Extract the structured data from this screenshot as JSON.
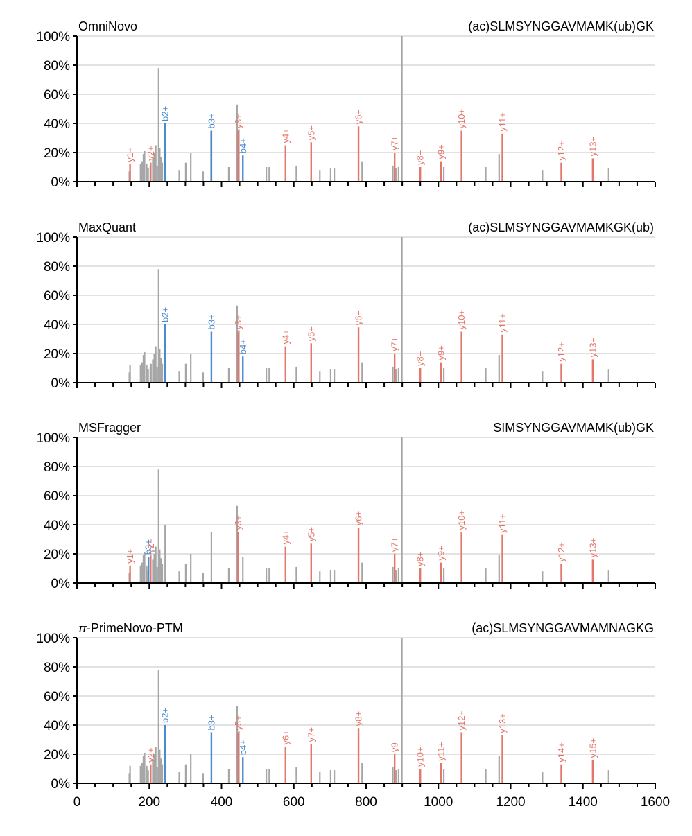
{
  "colors": {
    "unmatched": "#a6a6a6",
    "b_ion": "#4a8bd0",
    "y_ion": "#e4766a",
    "grid": "#d0d0d0",
    "axis": "#000000"
  },
  "chart_data": [
    {
      "type": "bar",
      "method": "OmniNovo",
      "sequence": "(ac)SLMSYNGGAVMAMK(ub)GK",
      "xlim": [
        0,
        1600
      ],
      "ylim": [
        0,
        100
      ],
      "yticks": [
        "0%",
        "20%",
        "40%",
        "60%",
        "80%",
        "100%"
      ],
      "grid": true,
      "peaks": [
        {
          "mz": 145,
          "i": 7
        },
        {
          "mz": 176,
          "i": 12
        },
        {
          "mz": 180,
          "i": 14
        },
        {
          "mz": 184,
          "i": 19
        },
        {
          "mz": 187,
          "i": 21
        },
        {
          "mz": 193,
          "i": 12
        },
        {
          "mz": 197,
          "i": 9
        },
        {
          "mz": 203,
          "i": 11
        },
        {
          "mz": 210,
          "i": 16
        },
        {
          "mz": 214,
          "i": 20
        },
        {
          "mz": 218,
          "i": 25
        },
        {
          "mz": 222,
          "i": 11
        },
        {
          "mz": 226,
          "i": 78
        },
        {
          "mz": 229,
          "i": 23
        },
        {
          "mz": 232,
          "i": 17
        },
        {
          "mz": 236,
          "i": 13
        },
        {
          "mz": 244,
          "i": 40
        },
        {
          "mz": 283,
          "i": 8
        },
        {
          "mz": 301,
          "i": 13
        },
        {
          "mz": 315,
          "i": 20
        },
        {
          "mz": 349,
          "i": 7
        },
        {
          "mz": 371,
          "i": 35
        },
        {
          "mz": 420,
          "i": 10
        },
        {
          "mz": 443,
          "i": 53
        },
        {
          "mz": 448,
          "i": 36
        },
        {
          "mz": 524,
          "i": 10
        },
        {
          "mz": 532,
          "i": 10
        },
        {
          "mz": 607,
          "i": 11
        },
        {
          "mz": 672,
          "i": 8
        },
        {
          "mz": 702,
          "i": 9
        },
        {
          "mz": 712,
          "i": 9
        },
        {
          "mz": 789,
          "i": 14
        },
        {
          "mz": 874,
          "i": 11
        },
        {
          "mz": 883,
          "i": 9
        },
        {
          "mz": 890,
          "i": 10
        },
        {
          "mz": 899,
          "i": 100
        },
        {
          "mz": 1015,
          "i": 10
        },
        {
          "mz": 1131,
          "i": 10
        },
        {
          "mz": 1168,
          "i": 19
        },
        {
          "mz": 1288,
          "i": 8
        },
        {
          "mz": 1471,
          "i": 9
        }
      ],
      "ions": [
        {
          "label": "y1+",
          "type": "y",
          "mz": 147,
          "i": 12
        },
        {
          "label": "y2+",
          "type": "y",
          "mz": 204,
          "i": 13
        },
        {
          "label": "b2+",
          "type": "b",
          "mz": 244,
          "i": 40
        },
        {
          "label": "b3+",
          "type": "b",
          "mz": 372,
          "i": 35
        },
        {
          "label": "y3+",
          "type": "y",
          "mz": 446,
          "i": 35
        },
        {
          "label": "b4+",
          "type": "b",
          "mz": 459,
          "i": 18
        },
        {
          "label": "y4+",
          "type": "y",
          "mz": 577,
          "i": 25
        },
        {
          "label": "y5+",
          "type": "y",
          "mz": 648,
          "i": 27
        },
        {
          "label": "y6+",
          "type": "y",
          "mz": 779,
          "i": 38
        },
        {
          "label": "y7+",
          "type": "y",
          "mz": 879,
          "i": 20
        },
        {
          "label": "y8+",
          "type": "y",
          "mz": 950,
          "i": 10
        },
        {
          "label": "y9+",
          "type": "y",
          "mz": 1007,
          "i": 14
        },
        {
          "label": "y10+",
          "type": "y",
          "mz": 1064,
          "i": 35
        },
        {
          "label": "y11+",
          "type": "y",
          "mz": 1177,
          "i": 33
        },
        {
          "label": "y12+",
          "type": "y",
          "mz": 1340,
          "i": 13
        },
        {
          "label": "y13+",
          "type": "y",
          "mz": 1427,
          "i": 16
        }
      ]
    },
    {
      "type": "bar",
      "method": "MaxQuant",
      "sequence": "(ac)SLMSYNGGAVMAMKGK(ub)",
      "xlim": [
        0,
        1600
      ],
      "ylim": [
        0,
        100
      ],
      "yticks": [
        "0%",
        "20%",
        "40%",
        "60%",
        "80%",
        "100%"
      ],
      "grid": true,
      "peaks": [
        {
          "mz": 145,
          "i": 7
        },
        {
          "mz": 147,
          "i": 12
        },
        {
          "mz": 176,
          "i": 12
        },
        {
          "mz": 180,
          "i": 14
        },
        {
          "mz": 184,
          "i": 19
        },
        {
          "mz": 187,
          "i": 21
        },
        {
          "mz": 193,
          "i": 12
        },
        {
          "mz": 197,
          "i": 9
        },
        {
          "mz": 203,
          "i": 11
        },
        {
          "mz": 205,
          "i": 13
        },
        {
          "mz": 210,
          "i": 16
        },
        {
          "mz": 214,
          "i": 20
        },
        {
          "mz": 218,
          "i": 25
        },
        {
          "mz": 222,
          "i": 11
        },
        {
          "mz": 226,
          "i": 78
        },
        {
          "mz": 229,
          "i": 23
        },
        {
          "mz": 232,
          "i": 17
        },
        {
          "mz": 236,
          "i": 13
        },
        {
          "mz": 283,
          "i": 8
        },
        {
          "mz": 301,
          "i": 13
        },
        {
          "mz": 315,
          "i": 20
        },
        {
          "mz": 349,
          "i": 7
        },
        {
          "mz": 420,
          "i": 10
        },
        {
          "mz": 443,
          "i": 53
        },
        {
          "mz": 448,
          "i": 36
        },
        {
          "mz": 524,
          "i": 10
        },
        {
          "mz": 532,
          "i": 10
        },
        {
          "mz": 607,
          "i": 11
        },
        {
          "mz": 672,
          "i": 8
        },
        {
          "mz": 702,
          "i": 9
        },
        {
          "mz": 712,
          "i": 9
        },
        {
          "mz": 789,
          "i": 14
        },
        {
          "mz": 874,
          "i": 11
        },
        {
          "mz": 883,
          "i": 9
        },
        {
          "mz": 890,
          "i": 10
        },
        {
          "mz": 899,
          "i": 100
        },
        {
          "mz": 1015,
          "i": 10
        },
        {
          "mz": 1131,
          "i": 10
        },
        {
          "mz": 1168,
          "i": 19
        },
        {
          "mz": 1288,
          "i": 8
        },
        {
          "mz": 1471,
          "i": 9
        }
      ],
      "ions": [
        {
          "label": "b2+",
          "type": "b",
          "mz": 244,
          "i": 40
        },
        {
          "label": "b3+",
          "type": "b",
          "mz": 372,
          "i": 35
        },
        {
          "label": "y3+",
          "type": "y",
          "mz": 446,
          "i": 35
        },
        {
          "label": "b4+",
          "type": "b",
          "mz": 459,
          "i": 18
        },
        {
          "label": "y4+",
          "type": "y",
          "mz": 577,
          "i": 25
        },
        {
          "label": "y5+",
          "type": "y",
          "mz": 648,
          "i": 27
        },
        {
          "label": "y6+",
          "type": "y",
          "mz": 779,
          "i": 38
        },
        {
          "label": "y7+",
          "type": "y",
          "mz": 879,
          "i": 20
        },
        {
          "label": "y8+",
          "type": "y",
          "mz": 950,
          "i": 10
        },
        {
          "label": "y9+",
          "type": "y",
          "mz": 1007,
          "i": 14
        },
        {
          "label": "y10+",
          "type": "y",
          "mz": 1064,
          "i": 35
        },
        {
          "label": "y11+",
          "type": "y",
          "mz": 1177,
          "i": 33
        },
        {
          "label": "y12+",
          "type": "y",
          "mz": 1340,
          "i": 13
        },
        {
          "label": "y13+",
          "type": "y",
          "mz": 1427,
          "i": 16
        }
      ]
    },
    {
      "type": "bar",
      "method": "MSFragger",
      "sequence": "SIMSYNGGAVMAMK(ub)GK",
      "xlim": [
        0,
        1600
      ],
      "ylim": [
        0,
        100
      ],
      "yticks": [
        "0%",
        "20%",
        "40%",
        "60%",
        "80%",
        "100%"
      ],
      "grid": true,
      "peaks": [
        {
          "mz": 145,
          "i": 7
        },
        {
          "mz": 176,
          "i": 12
        },
        {
          "mz": 180,
          "i": 14
        },
        {
          "mz": 184,
          "i": 19
        },
        {
          "mz": 187,
          "i": 21
        },
        {
          "mz": 193,
          "i": 12
        },
        {
          "mz": 197,
          "i": 9
        },
        {
          "mz": 210,
          "i": 16
        },
        {
          "mz": 214,
          "i": 20
        },
        {
          "mz": 218,
          "i": 25
        },
        {
          "mz": 222,
          "i": 11
        },
        {
          "mz": 226,
          "i": 78
        },
        {
          "mz": 229,
          "i": 23
        },
        {
          "mz": 232,
          "i": 17
        },
        {
          "mz": 236,
          "i": 13
        },
        {
          "mz": 244,
          "i": 40
        },
        {
          "mz": 283,
          "i": 8
        },
        {
          "mz": 301,
          "i": 13
        },
        {
          "mz": 315,
          "i": 20
        },
        {
          "mz": 349,
          "i": 7
        },
        {
          "mz": 372,
          "i": 35
        },
        {
          "mz": 420,
          "i": 10
        },
        {
          "mz": 443,
          "i": 53
        },
        {
          "mz": 459,
          "i": 18
        },
        {
          "mz": 524,
          "i": 10
        },
        {
          "mz": 532,
          "i": 10
        },
        {
          "mz": 607,
          "i": 11
        },
        {
          "mz": 672,
          "i": 8
        },
        {
          "mz": 702,
          "i": 9
        },
        {
          "mz": 712,
          "i": 9
        },
        {
          "mz": 789,
          "i": 14
        },
        {
          "mz": 874,
          "i": 11
        },
        {
          "mz": 883,
          "i": 9
        },
        {
          "mz": 890,
          "i": 10
        },
        {
          "mz": 899,
          "i": 100
        },
        {
          "mz": 1015,
          "i": 10
        },
        {
          "mz": 1131,
          "i": 10
        },
        {
          "mz": 1168,
          "i": 19
        },
        {
          "mz": 1288,
          "i": 8
        },
        {
          "mz": 1471,
          "i": 9
        }
      ],
      "ions": [
        {
          "label": "y1+",
          "type": "y",
          "mz": 147,
          "i": 12
        },
        {
          "label": "b3+",
          "type": "b",
          "mz": 198,
          "i": 18
        },
        {
          "label": "y2+",
          "type": "y",
          "mz": 204,
          "i": 19
        },
        {
          "label": "y3+",
          "type": "y",
          "mz": 446,
          "i": 35
        },
        {
          "label": "y4+",
          "type": "y",
          "mz": 577,
          "i": 25
        },
        {
          "label": "y5+",
          "type": "y",
          "mz": 648,
          "i": 27
        },
        {
          "label": "y6+",
          "type": "y",
          "mz": 779,
          "i": 38
        },
        {
          "label": "y7+",
          "type": "y",
          "mz": 879,
          "i": 20
        },
        {
          "label": "y8+",
          "type": "y",
          "mz": 950,
          "i": 10
        },
        {
          "label": "y9+",
          "type": "y",
          "mz": 1007,
          "i": 14
        },
        {
          "label": "y10+",
          "type": "y",
          "mz": 1064,
          "i": 35
        },
        {
          "label": "y11+",
          "type": "y",
          "mz": 1177,
          "i": 33
        },
        {
          "label": "y12+",
          "type": "y",
          "mz": 1340,
          "i": 13
        },
        {
          "label": "y13+",
          "type": "y",
          "mz": 1427,
          "i": 16
        }
      ]
    },
    {
      "type": "bar",
      "method": "-PrimeNovo-PTM",
      "method_prefix": "π",
      "sequence": "(ac)SLMSYNGGAVMAMNAGKG",
      "xlim": [
        0,
        1600
      ],
      "ylim": [
        0,
        100
      ],
      "xticks": [
        "0",
        "200",
        "400",
        "600",
        "800",
        "1000",
        "1200",
        "1400",
        "1600"
      ],
      "yticks": [
        "0%",
        "20%",
        "40%",
        "60%",
        "80%",
        "100%"
      ],
      "grid": true,
      "peaks": [
        {
          "mz": 145,
          "i": 7
        },
        {
          "mz": 147,
          "i": 12
        },
        {
          "mz": 176,
          "i": 12
        },
        {
          "mz": 180,
          "i": 14
        },
        {
          "mz": 184,
          "i": 19
        },
        {
          "mz": 187,
          "i": 21
        },
        {
          "mz": 193,
          "i": 12
        },
        {
          "mz": 197,
          "i": 9
        },
        {
          "mz": 210,
          "i": 16
        },
        {
          "mz": 214,
          "i": 20
        },
        {
          "mz": 218,
          "i": 25
        },
        {
          "mz": 222,
          "i": 11
        },
        {
          "mz": 226,
          "i": 78
        },
        {
          "mz": 229,
          "i": 23
        },
        {
          "mz": 232,
          "i": 17
        },
        {
          "mz": 236,
          "i": 13
        },
        {
          "mz": 283,
          "i": 8
        },
        {
          "mz": 301,
          "i": 13
        },
        {
          "mz": 315,
          "i": 20
        },
        {
          "mz": 349,
          "i": 7
        },
        {
          "mz": 420,
          "i": 10
        },
        {
          "mz": 443,
          "i": 53
        },
        {
          "mz": 448,
          "i": 36
        },
        {
          "mz": 524,
          "i": 10
        },
        {
          "mz": 532,
          "i": 10
        },
        {
          "mz": 607,
          "i": 11
        },
        {
          "mz": 672,
          "i": 8
        },
        {
          "mz": 702,
          "i": 9
        },
        {
          "mz": 712,
          "i": 9
        },
        {
          "mz": 789,
          "i": 14
        },
        {
          "mz": 874,
          "i": 11
        },
        {
          "mz": 883,
          "i": 9
        },
        {
          "mz": 890,
          "i": 10
        },
        {
          "mz": 899,
          "i": 100
        },
        {
          "mz": 1015,
          "i": 10
        },
        {
          "mz": 1131,
          "i": 10
        },
        {
          "mz": 1168,
          "i": 19
        },
        {
          "mz": 1288,
          "i": 8
        },
        {
          "mz": 1471,
          "i": 9
        }
      ],
      "ions": [
        {
          "label": "y2+",
          "type": "y",
          "mz": 204,
          "i": 13
        },
        {
          "label": "b2+",
          "type": "b",
          "mz": 244,
          "i": 40
        },
        {
          "label": "b3+",
          "type": "b",
          "mz": 372,
          "i": 35
        },
        {
          "label": "y5+",
          "type": "y",
          "mz": 446,
          "i": 35
        },
        {
          "label": "b4+",
          "type": "b",
          "mz": 459,
          "i": 18
        },
        {
          "label": "y6+",
          "type": "y",
          "mz": 577,
          "i": 25
        },
        {
          "label": "y7+",
          "type": "y",
          "mz": 648,
          "i": 27
        },
        {
          "label": "y8+",
          "type": "y",
          "mz": 779,
          "i": 38
        },
        {
          "label": "y9+",
          "type": "y",
          "mz": 879,
          "i": 20
        },
        {
          "label": "y10+",
          "type": "y",
          "mz": 950,
          "i": 10
        },
        {
          "label": "y11+",
          "type": "y",
          "mz": 1007,
          "i": 14
        },
        {
          "label": "y12+",
          "type": "y",
          "mz": 1064,
          "i": 35
        },
        {
          "label": "y13+",
          "type": "y",
          "mz": 1177,
          "i": 33
        },
        {
          "label": "y14+",
          "type": "y",
          "mz": 1340,
          "i": 13
        },
        {
          "label": "y15+",
          "type": "y",
          "mz": 1427,
          "i": 16
        }
      ]
    }
  ]
}
